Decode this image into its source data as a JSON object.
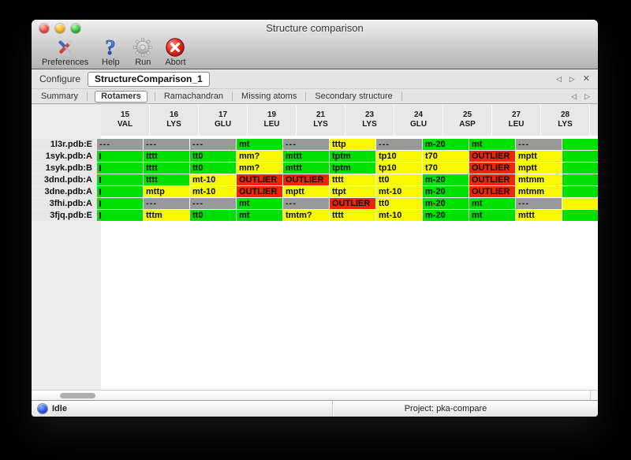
{
  "window": {
    "title": "Structure comparison"
  },
  "toolbar": {
    "items": [
      {
        "label": "Preferences",
        "icon": "tools-icon"
      },
      {
        "label": "Help",
        "icon": "question-mark-icon"
      },
      {
        "label": "Run",
        "icon": "gear-icon"
      },
      {
        "label": "Abort",
        "icon": "stop-x-icon"
      }
    ]
  },
  "configure": {
    "label": "Configure",
    "configuration_name": "StructureComparison_1"
  },
  "icons": {
    "prev": "◁",
    "next": "▷",
    "close": "✕"
  },
  "tabs": [
    "Summary",
    "Rotamers",
    "Ramachandran",
    "Missing atoms",
    "Secondary structure"
  ],
  "active_tab": "Rotamers",
  "colors": {
    "green": "#00e000",
    "yellow": "#f8f800",
    "red": "#ee2500",
    "gray": "#999999"
  },
  "table": {
    "columns": [
      [
        "15",
        "VAL"
      ],
      [
        "16",
        "LYS"
      ],
      [
        "17",
        "GLU"
      ],
      [
        "19",
        "LEU"
      ],
      [
        "21",
        "LYS"
      ],
      [
        "23",
        "LYS"
      ],
      [
        "24",
        "GLU"
      ],
      [
        "25",
        "ASP"
      ],
      [
        "27",
        "LEU"
      ],
      [
        "28",
        "LYS"
      ]
    ],
    "rows": [
      {
        "label": "1l3r.pdb:E",
        "sliver": "green",
        "cells": [
          [
            "---",
            "gray"
          ],
          [
            "---",
            "gray"
          ],
          [
            "---",
            "gray"
          ],
          [
            "mt",
            "green"
          ],
          [
            "---",
            "gray"
          ],
          [
            "tttp",
            "yellow"
          ],
          [
            "---",
            "gray"
          ],
          [
            "m-20",
            "green"
          ],
          [
            "mt",
            "green"
          ],
          [
            "---",
            "gray"
          ]
        ]
      },
      {
        "label": "1syk.pdb:A",
        "sliver": "green",
        "cells": [
          [
            "",
            "green"
          ],
          [
            "tttt",
            "green"
          ],
          [
            "tt0",
            "green"
          ],
          [
            "mm?",
            "yellow"
          ],
          [
            "mttt",
            "green"
          ],
          [
            "tptm",
            "green"
          ],
          [
            "tp10",
            "yellow"
          ],
          [
            "t70",
            "yellow"
          ],
          [
            "OUTLIER",
            "red"
          ],
          [
            "mptt",
            "yellow"
          ]
        ]
      },
      {
        "label": "1syk.pdb:B",
        "sliver": "green",
        "cells": [
          [
            "",
            "green"
          ],
          [
            "tttt",
            "green"
          ],
          [
            "tt0",
            "green"
          ],
          [
            "mm?",
            "yellow"
          ],
          [
            "mttt",
            "green"
          ],
          [
            "tptm",
            "green"
          ],
          [
            "tp10",
            "yellow"
          ],
          [
            "t70",
            "yellow"
          ],
          [
            "OUTLIER",
            "red"
          ],
          [
            "mptt",
            "yellow"
          ]
        ]
      },
      {
        "label": "3dnd.pdb:A",
        "sliver": "green",
        "cells": [
          [
            "",
            "green"
          ],
          [
            "tttt",
            "green"
          ],
          [
            "mt-10",
            "yellow"
          ],
          [
            "OUTLIER",
            "red"
          ],
          [
            "OUTLIER",
            "red"
          ],
          [
            "tttt",
            "yellow"
          ],
          [
            "tt0",
            "yellow"
          ],
          [
            "m-20",
            "green"
          ],
          [
            "OUTLIER",
            "red"
          ],
          [
            "mtmm",
            "yellow"
          ]
        ]
      },
      {
        "label": "3dne.pdb:A",
        "sliver": "green",
        "cells": [
          [
            "",
            "green"
          ],
          [
            "mttp",
            "yellow"
          ],
          [
            "mt-10",
            "yellow"
          ],
          [
            "OUTLIER",
            "red"
          ],
          [
            "mptt",
            "yellow"
          ],
          [
            "ttpt",
            "yellow"
          ],
          [
            "mt-10",
            "yellow"
          ],
          [
            "m-20",
            "green"
          ],
          [
            "OUTLIER",
            "red"
          ],
          [
            "mtmm",
            "yellow"
          ]
        ]
      },
      {
        "label": "3fhi.pdb:A",
        "sliver": "yellow",
        "cells": [
          [
            "",
            "green"
          ],
          [
            "---",
            "gray"
          ],
          [
            "---",
            "gray"
          ],
          [
            "mt",
            "green"
          ],
          [
            "---",
            "gray"
          ],
          [
            "OUTLIER",
            "red"
          ],
          [
            "tt0",
            "yellow"
          ],
          [
            "m-20",
            "green"
          ],
          [
            "mt",
            "green"
          ],
          [
            "---",
            "gray"
          ]
        ]
      },
      {
        "label": "3fjq.pdb:E",
        "sliver": "green",
        "cells": [
          [
            "",
            "green"
          ],
          [
            "tttm",
            "yellow"
          ],
          [
            "tt0",
            "green"
          ],
          [
            "mt",
            "green"
          ],
          [
            "tmtm?",
            "yellow"
          ],
          [
            "tttt",
            "yellow"
          ],
          [
            "mt-10",
            "yellow"
          ],
          [
            "m-20",
            "green"
          ],
          [
            "mt",
            "green"
          ],
          [
            "mttt",
            "yellow"
          ]
        ]
      }
    ]
  },
  "statusbar": {
    "status": "Idle",
    "project": "Project: pka-compare"
  }
}
